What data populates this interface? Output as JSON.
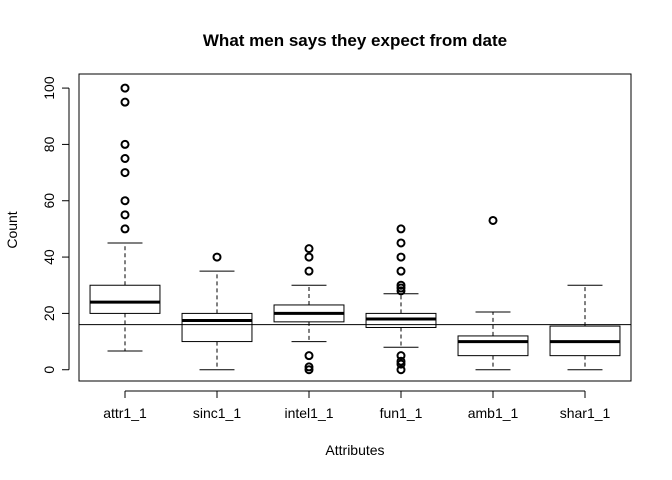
{
  "chart_data": {
    "type": "boxplot",
    "title": "What men says they expect from date",
    "xlabel": "Attributes",
    "ylabel": "Count",
    "ylim": [
      -4,
      105
    ],
    "yticks": [
      0,
      20,
      40,
      60,
      80,
      100
    ],
    "categories": [
      "attr1_1",
      "sinc1_1",
      "intel1_1",
      "fun1_1",
      "amb1_1",
      "shar1_1"
    ],
    "boxes": [
      {
        "name": "attr1_1",
        "whisker_low": 6.67,
        "q1": 20,
        "median": 24,
        "q3": 30,
        "whisker_high": 45,
        "outliers": [
          50,
          55,
          60,
          70,
          75,
          80,
          95,
          100
        ]
      },
      {
        "name": "sinc1_1",
        "whisker_low": 0,
        "q1": 10,
        "median": 17.5,
        "q3": 20,
        "whisker_high": 35,
        "outliers": [
          40
        ]
      },
      {
        "name": "intel1_1",
        "whisker_low": 10,
        "q1": 17,
        "median": 20,
        "q3": 23,
        "whisker_high": 30,
        "outliers": [
          0,
          1,
          5,
          35,
          40,
          43
        ]
      },
      {
        "name": "fun1_1",
        "whisker_low": 8,
        "q1": 15,
        "median": 18,
        "q3": 20,
        "whisker_high": 27,
        "outliers": [
          0,
          2,
          3,
          5,
          28,
          29,
          30,
          35,
          40,
          45,
          50
        ]
      },
      {
        "name": "amb1_1",
        "whisker_low": 0,
        "q1": 5,
        "median": 10,
        "q3": 12,
        "whisker_high": 20.5,
        "outliers": [
          53
        ]
      },
      {
        "name": "shar1_1",
        "whisker_low": 0,
        "q1": 5,
        "median": 10,
        "q3": 15.5,
        "whisker_high": 30,
        "outliers": []
      }
    ],
    "reference_line": 16,
    "grid": false,
    "legend": "none",
    "colors": {
      "stroke": "#000000",
      "background": "#ffffff"
    }
  }
}
